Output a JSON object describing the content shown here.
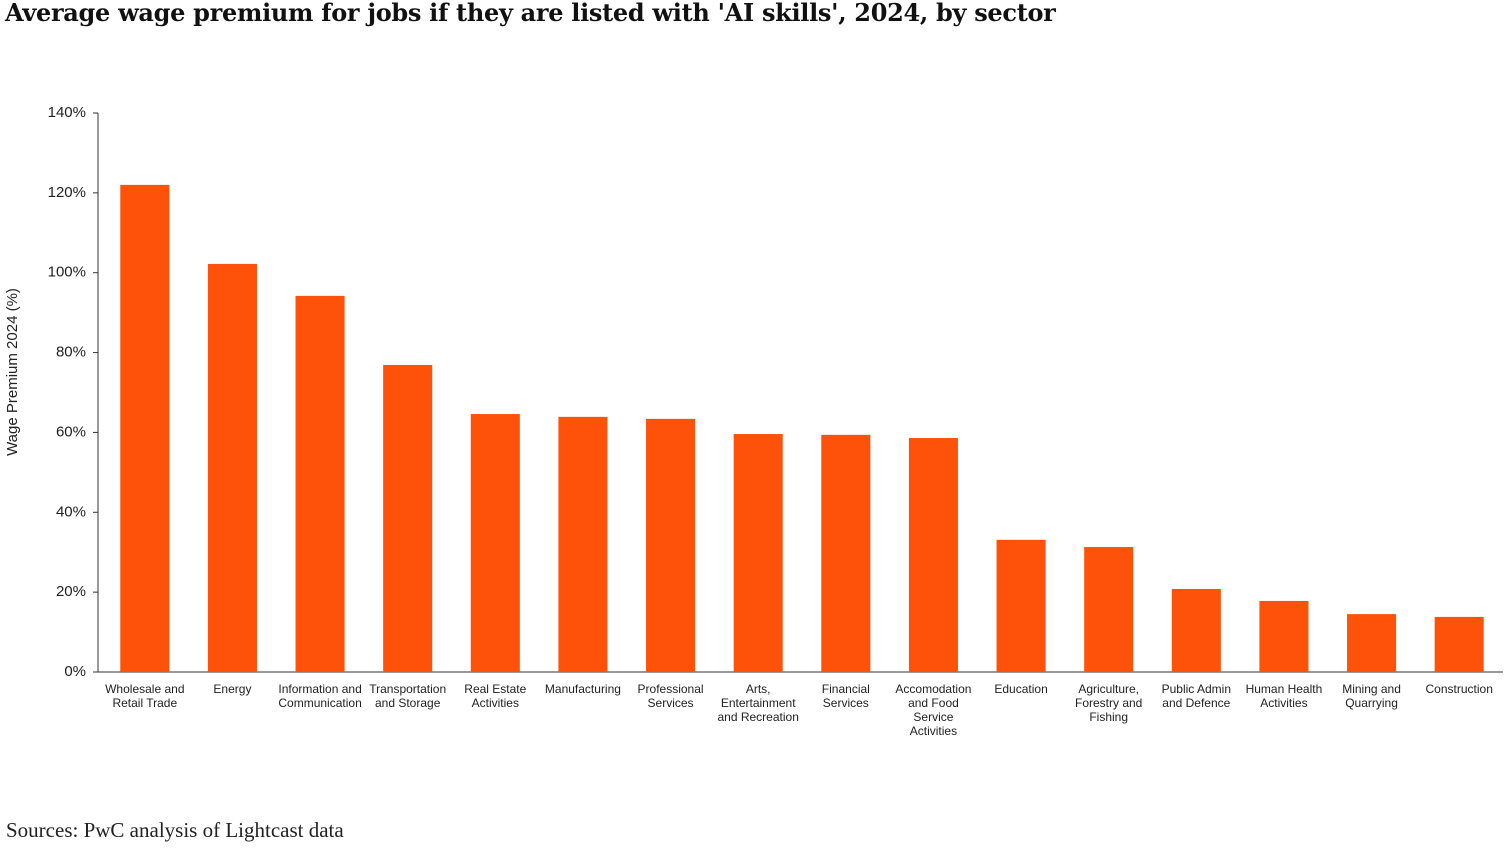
{
  "chart_data": {
    "type": "bar",
    "title": "Average wage premium for jobs if they are listed with 'AI skills', 2024, by sector",
    "y_label": "Wage Premium 2024 (%)",
    "source": "Sources: PwC analysis of Lightcast data",
    "categories": [
      "Wholesale and Retail Trade",
      "Energy",
      "Information and Communication",
      "Transportation and Storage",
      "Real Estate Activities",
      "Manufacturing",
      "Professional Services",
      "Arts, Entertainment and Recreation",
      "Financial Services",
      "Accomodation and Food Service Activities",
      "Education",
      "Agriculture, Forestry and Fishing",
      "Public Admin and Defence",
      "Human Health Activities",
      "Mining and Quarrying",
      "Construction"
    ],
    "values": [
      122.0,
      102.2,
      94.2,
      76.9,
      64.6,
      63.9,
      63.4,
      59.6,
      59.4,
      58.6,
      33.1,
      31.3,
      20.8,
      17.8,
      14.5,
      13.8
    ],
    "color": "#fe520b",
    "ylim": [
      0,
      140
    ],
    "yticks": [
      {
        "value": 0,
        "label": "0%"
      },
      {
        "value": 20,
        "label": "20%"
      },
      {
        "value": 40,
        "label": "40%"
      },
      {
        "value": 60,
        "label": "60%"
      },
      {
        "value": 80,
        "label": "80%"
      },
      {
        "value": 100,
        "label": "100%"
      },
      {
        "value": 120,
        "label": "120%"
      },
      {
        "value": 140,
        "label": "140%"
      }
    ],
    "grid": false
  }
}
